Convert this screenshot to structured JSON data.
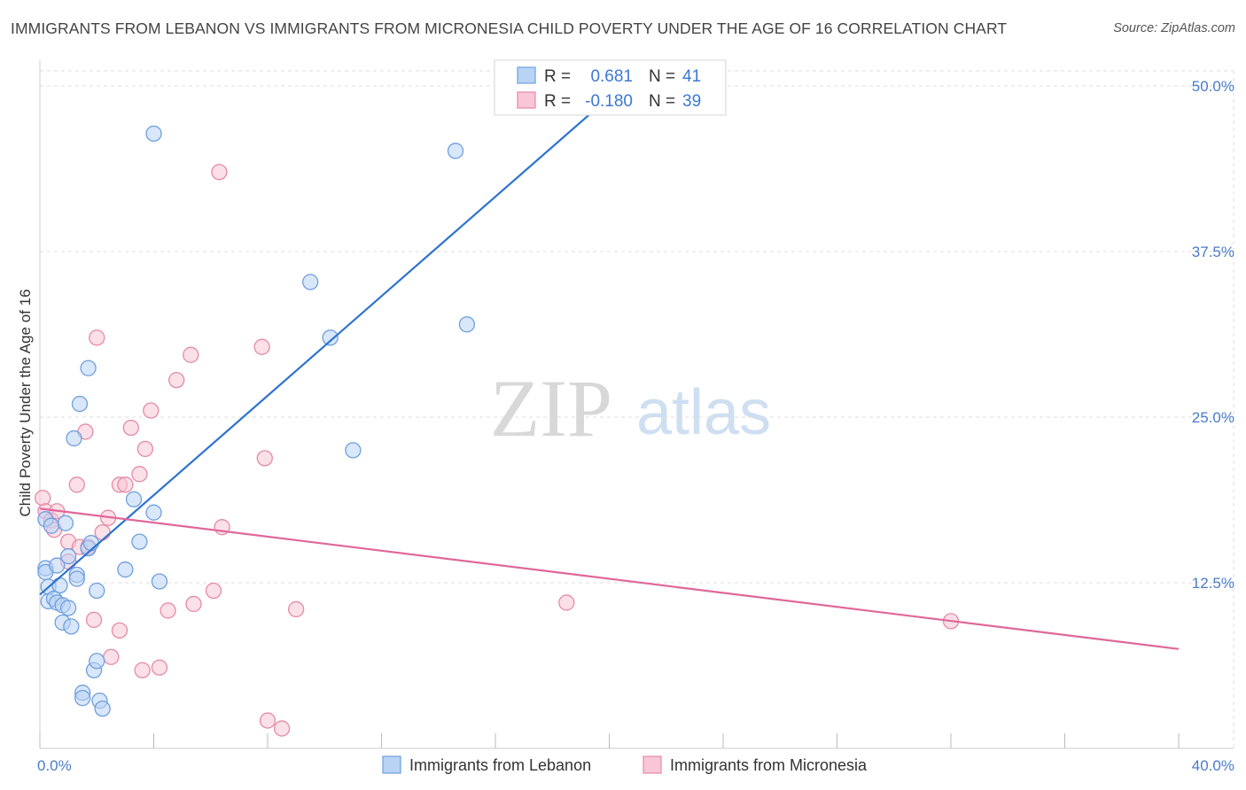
{
  "header": {
    "title": "IMMIGRANTS FROM LEBANON VS IMMIGRANTS FROM MICRONESIA CHILD POVERTY UNDER THE AGE OF 16 CORRELATION CHART",
    "source": "Source: ZipAtlas.com"
  },
  "watermark": {
    "zip": "ZIP",
    "atlas": "atlas"
  },
  "stats": {
    "r_label": "R =",
    "n_label": "N =",
    "lebanon": {
      "r": "0.681",
      "n": "41"
    },
    "micronesia": {
      "r": "-0.180",
      "n": "39"
    }
  },
  "legend": {
    "lebanon": "Immigrants from Lebanon",
    "micronesia": "Immigrants from Micronesia"
  },
  "colors": {
    "lebanon_fill": "#b9d3f5",
    "lebanon_stroke": "#6f9fde",
    "lebanon_line": "#2f74d0",
    "micronesia_fill": "#f8c6d6",
    "micronesia_stroke": "#e58aa8",
    "micronesia_line": "#e0679a",
    "tick": "#4a7cc9",
    "grid": "#dddddd"
  },
  "chart_data": {
    "type": "scatter",
    "title": "IMMIGRANTS FROM LEBANON VS IMMIGRANTS FROM MICRONESIA CHILD POVERTY UNDER THE AGE OF 16 CORRELATION CHART",
    "ylabel": "Child Poverty Under the Age of 16",
    "xlabel": "",
    "xlim": [
      0,
      40
    ],
    "ylim": [
      0,
      50
    ],
    "x_ticks": [
      0,
      4,
      8,
      12,
      16,
      20,
      24,
      28,
      32,
      36,
      40
    ],
    "x_tick_labels": [
      "0.0%",
      "40.0%"
    ],
    "y_ticks": [
      12.5,
      25.0,
      37.5,
      50.0
    ],
    "y_tick_labels": [
      "12.5%",
      "25.0%",
      "37.5%",
      "50.0%"
    ],
    "grid": true,
    "legend_position": "bottom",
    "series": [
      {
        "name": "Immigrants from Lebanon",
        "r": 0.681,
        "n": 41,
        "trend": {
          "x": [
            0.0,
            19.6
          ],
          "y": [
            11.6,
            48.4
          ]
        },
        "points": [
          [
            0.2,
            17.3
          ],
          [
            0.2,
            13.6
          ],
          [
            0.2,
            13.3
          ],
          [
            0.3,
            12.2
          ],
          [
            0.3,
            11.1
          ],
          [
            0.5,
            11.3
          ],
          [
            0.6,
            11.0
          ],
          [
            0.7,
            12.3
          ],
          [
            0.8,
            10.8
          ],
          [
            0.8,
            9.5
          ],
          [
            0.9,
            17.0
          ],
          [
            1.0,
            14.5
          ],
          [
            1.0,
            10.6
          ],
          [
            1.1,
            9.2
          ],
          [
            1.2,
            23.4
          ],
          [
            1.3,
            13.1
          ],
          [
            1.3,
            12.8
          ],
          [
            1.4,
            26.0
          ],
          [
            1.5,
            4.2
          ],
          [
            1.5,
            3.8
          ],
          [
            1.7,
            28.7
          ],
          [
            1.7,
            15.1
          ],
          [
            1.8,
            15.5
          ],
          [
            1.9,
            5.9
          ],
          [
            2.0,
            11.9
          ],
          [
            2.0,
            6.6
          ],
          [
            2.1,
            3.6
          ],
          [
            2.2,
            3.0
          ],
          [
            3.0,
            13.5
          ],
          [
            3.3,
            18.8
          ],
          [
            3.5,
            15.6
          ],
          [
            4.0,
            17.8
          ],
          [
            4.0,
            46.4
          ],
          [
            4.2,
            12.6
          ],
          [
            9.5,
            35.2
          ],
          [
            10.2,
            31.0
          ],
          [
            11.0,
            22.5
          ],
          [
            14.6,
            45.1
          ],
          [
            15.0,
            32.0
          ],
          [
            0.4,
            16.8
          ],
          [
            0.6,
            13.8
          ]
        ]
      },
      {
        "name": "Immigrants from Micronesia",
        "r": -0.18,
        "n": 39,
        "trend": {
          "x": [
            0.0,
            40.0
          ],
          "y": [
            18.1,
            7.5
          ]
        },
        "points": [
          [
            0.1,
            18.9
          ],
          [
            0.2,
            17.9
          ],
          [
            0.4,
            17.2
          ],
          [
            0.5,
            16.5
          ],
          [
            0.6,
            17.9
          ],
          [
            1.0,
            14.1
          ],
          [
            1.0,
            15.6
          ],
          [
            1.3,
            19.9
          ],
          [
            1.4,
            15.2
          ],
          [
            1.6,
            23.9
          ],
          [
            1.7,
            15.2
          ],
          [
            1.9,
            9.7
          ],
          [
            2.0,
            31.0
          ],
          [
            2.2,
            16.3
          ],
          [
            2.4,
            17.4
          ],
          [
            2.5,
            6.9
          ],
          [
            2.8,
            19.9
          ],
          [
            2.8,
            8.9
          ],
          [
            3.0,
            19.9
          ],
          [
            3.2,
            24.2
          ],
          [
            3.5,
            20.7
          ],
          [
            3.6,
            5.9
          ],
          [
            3.7,
            22.6
          ],
          [
            3.9,
            25.5
          ],
          [
            4.2,
            6.1
          ],
          [
            4.5,
            10.4
          ],
          [
            4.8,
            27.8
          ],
          [
            5.3,
            29.7
          ],
          [
            5.4,
            10.9
          ],
          [
            6.3,
            43.5
          ],
          [
            6.1,
            11.9
          ],
          [
            6.4,
            16.7
          ],
          [
            7.8,
            30.3
          ],
          [
            7.9,
            21.9
          ],
          [
            8.0,
            2.1
          ],
          [
            8.5,
            1.5
          ],
          [
            9.0,
            10.5
          ],
          [
            18.5,
            11.0
          ],
          [
            32.0,
            9.6
          ]
        ]
      }
    ]
  }
}
